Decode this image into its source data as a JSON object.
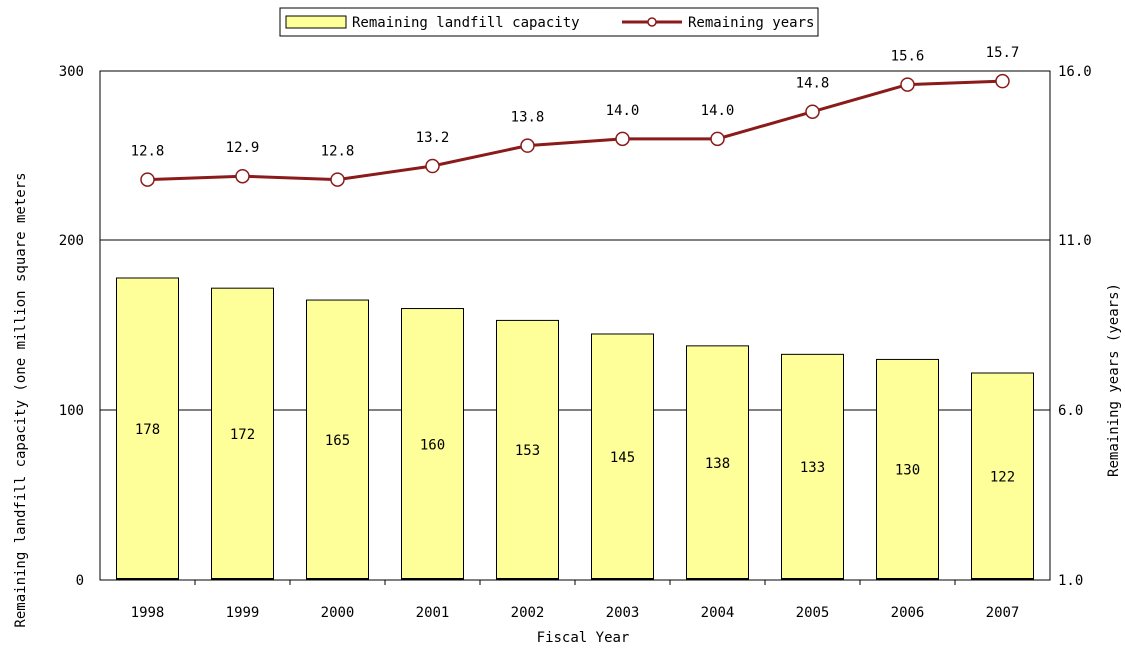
{
  "chart_data": {
    "type": "bar+line",
    "categories": [
      "1998",
      "1999",
      "2000",
      "2001",
      "2002",
      "2003",
      "2004",
      "2005",
      "2006",
      "2007"
    ],
    "series": [
      {
        "name": "Remaining landfill capacity",
        "type": "bar",
        "axis": "left",
        "values": [
          178,
          172,
          165,
          160,
          153,
          145,
          138,
          133,
          130,
          122
        ],
        "labels": [
          "178",
          "172",
          "165",
          "160",
          "153",
          "145",
          "138",
          "133",
          "130",
          "122"
        ]
      },
      {
        "name": "Remaining years",
        "type": "line",
        "axis": "right",
        "values": [
          12.8,
          12.9,
          12.8,
          13.2,
          13.8,
          14.0,
          14.0,
          14.8,
          15.6,
          15.7
        ],
        "labels": [
          "12.8",
          "12.9",
          "12.8",
          "13.2",
          "13.8",
          "14.0",
          "14.0",
          "14.8",
          "15.6",
          "15.7"
        ]
      }
    ],
    "xlabel": "Fiscal Year",
    "ylabel": "Remaining landfill capacity (one million square meters",
    "y2label": "Remaining years (years)",
    "ylim": [
      0,
      300
    ],
    "y2lim": [
      1,
      16
    ],
    "yticks": [
      "0",
      "100",
      "200",
      "300"
    ],
    "y2ticks": [
      "1.0",
      "6.0",
      "11.0",
      "16.0"
    ],
    "grid": true,
    "legend": "top-center",
    "colors": {
      "bar_fill": "#ffff99",
      "bar_stroke": "#000000",
      "line": "#8b1a1a",
      "marker_fill": "#ffffff"
    }
  }
}
